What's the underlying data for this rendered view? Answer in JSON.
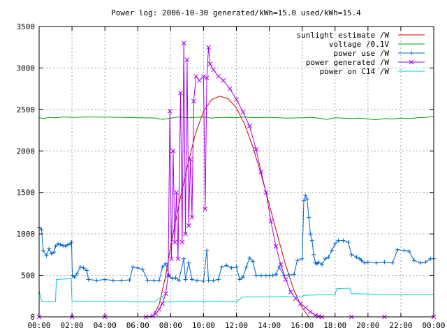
{
  "chart_data": {
    "type": "line",
    "title": "Power log: 2006-10-30 generated/kWh=15.0 used/kWh=15.4",
    "xlabel": "",
    "ylabel": "",
    "xlim": [
      0,
      24
    ],
    "ylim": [
      0,
      3500
    ],
    "grid": true,
    "legend_position": "top-right",
    "x_ticks": [
      "00:00",
      "02:00",
      "04:00",
      "06:00",
      "08:00",
      "10:00",
      "12:00",
      "14:00",
      "16:00",
      "18:00",
      "20:00",
      "22:00",
      "00:00"
    ],
    "y_ticks": [
      "0",
      "500",
      "1000",
      "1500",
      "2000",
      "2500",
      "3000",
      "3500"
    ],
    "series": [
      {
        "name": "sunlight estimate /W",
        "color": "#cc0000",
        "marker": "none",
        "points": [
          [
            6.9,
            0
          ],
          [
            7.3,
            150
          ],
          [
            7.7,
            500
          ],
          [
            8.0,
            850
          ],
          [
            8.5,
            1350
          ],
          [
            9.0,
            1800
          ],
          [
            9.5,
            2200
          ],
          [
            10.0,
            2480
          ],
          [
            10.5,
            2620
          ],
          [
            11.0,
            2660
          ],
          [
            11.5,
            2630
          ],
          [
            12.0,
            2520
          ],
          [
            12.5,
            2320
          ],
          [
            13.0,
            2050
          ],
          [
            13.5,
            1720
          ],
          [
            14.0,
            1350
          ],
          [
            14.5,
            980
          ],
          [
            15.0,
            620
          ],
          [
            15.5,
            320
          ],
          [
            16.0,
            110
          ],
          [
            16.4,
            0
          ]
        ]
      },
      {
        "name": "voltage /0.1V",
        "color": "#00a000",
        "marker": "none",
        "points": [
          [
            0,
            2400
          ],
          [
            0.3,
            2390
          ],
          [
            0.6,
            2405
          ],
          [
            1,
            2400
          ],
          [
            1.5,
            2410
          ],
          [
            2,
            2405
          ],
          [
            3,
            2410
          ],
          [
            4,
            2408
          ],
          [
            5,
            2405
          ],
          [
            6,
            2400
          ],
          [
            7,
            2398
          ],
          [
            7.5,
            2380
          ],
          [
            8,
            2395
          ],
          [
            8.5,
            2410
          ],
          [
            9,
            2400
          ],
          [
            10,
            2410
          ],
          [
            10.5,
            2395
          ],
          [
            11,
            2405
          ],
          [
            12,
            2400
          ],
          [
            12.5,
            2410
          ],
          [
            13,
            2400
          ],
          [
            14,
            2405
          ],
          [
            15,
            2395
          ],
          [
            16,
            2400
          ],
          [
            16.5,
            2405
          ],
          [
            17,
            2395
          ],
          [
            17.5,
            2380
          ],
          [
            18,
            2400
          ],
          [
            19,
            2390
          ],
          [
            19.5,
            2395
          ],
          [
            20,
            2385
          ],
          [
            20.5,
            2375
          ],
          [
            21,
            2390
          ],
          [
            21.5,
            2385
          ],
          [
            22,
            2395
          ],
          [
            22.5,
            2390
          ],
          [
            23,
            2400
          ],
          [
            23.5,
            2405
          ],
          [
            24,
            2415
          ]
        ]
      },
      {
        "name": "power use /W",
        "color": "#0066cc",
        "marker": "+",
        "points": [
          [
            0,
            1080
          ],
          [
            0.15,
            1050
          ],
          [
            0.25,
            800
          ],
          [
            0.45,
            740
          ],
          [
            0.6,
            820
          ],
          [
            0.75,
            760
          ],
          [
            0.9,
            780
          ],
          [
            1.0,
            850
          ],
          [
            1.15,
            880
          ],
          [
            1.3,
            870
          ],
          [
            1.45,
            860
          ],
          [
            1.6,
            850
          ],
          [
            1.75,
            870
          ],
          [
            1.9,
            880
          ],
          [
            1.97,
            900
          ],
          [
            2.02,
            500
          ],
          [
            2.15,
            480
          ],
          [
            2.3,
            520
          ],
          [
            2.5,
            600
          ],
          [
            2.7,
            590
          ],
          [
            2.9,
            560
          ],
          [
            3.0,
            450
          ],
          [
            3.5,
            440
          ],
          [
            4.0,
            450
          ],
          [
            4.5,
            440
          ],
          [
            5.0,
            440
          ],
          [
            5.5,
            445
          ],
          [
            5.7,
            600
          ],
          [
            6.0,
            590
          ],
          [
            6.3,
            570
          ],
          [
            6.6,
            440
          ],
          [
            7.0,
            440
          ],
          [
            7.3,
            440
          ],
          [
            7.5,
            600
          ],
          [
            7.7,
            640
          ],
          [
            7.9,
            500
          ],
          [
            8.1,
            460
          ],
          [
            8.3,
            470
          ],
          [
            8.5,
            440
          ],
          [
            8.8,
            700
          ],
          [
            8.9,
            450
          ],
          [
            9.1,
            650
          ],
          [
            9.3,
            450
          ],
          [
            9.6,
            440
          ],
          [
            10.0,
            430
          ],
          [
            10.2,
            800
          ],
          [
            10.3,
            440
          ],
          [
            10.6,
            440
          ],
          [
            10.9,
            450
          ],
          [
            11.1,
            600
          ],
          [
            11.4,
            620
          ],
          [
            11.7,
            590
          ],
          [
            12.0,
            600
          ],
          [
            12.2,
            450
          ],
          [
            12.4,
            480
          ],
          [
            12.6,
            600
          ],
          [
            12.8,
            710
          ],
          [
            13.0,
            670
          ],
          [
            13.2,
            500
          ],
          [
            13.5,
            500
          ],
          [
            13.8,
            500
          ],
          [
            14.0,
            500
          ],
          [
            14.2,
            500
          ],
          [
            14.4,
            510
          ],
          [
            14.6,
            600
          ],
          [
            14.9,
            500
          ],
          [
            15.2,
            505
          ],
          [
            15.5,
            510
          ],
          [
            15.7,
            680
          ],
          [
            16.0,
            700
          ],
          [
            16.1,
            1400
          ],
          [
            16.2,
            1460
          ],
          [
            16.3,
            1420
          ],
          [
            16.4,
            1200
          ],
          [
            16.5,
            1000
          ],
          [
            16.6,
            920
          ],
          [
            16.7,
            750
          ],
          [
            16.8,
            650
          ],
          [
            16.9,
            640
          ],
          [
            17.0,
            660
          ],
          [
            17.2,
            630
          ],
          [
            17.4,
            700
          ],
          [
            17.6,
            720
          ],
          [
            17.8,
            800
          ],
          [
            18.0,
            880
          ],
          [
            18.2,
            920
          ],
          [
            18.5,
            920
          ],
          [
            18.8,
            900
          ],
          [
            19.0,
            750
          ],
          [
            19.3,
            720
          ],
          [
            19.5,
            700
          ],
          [
            19.6,
            680
          ],
          [
            19.8,
            650
          ],
          [
            20.0,
            660
          ],
          [
            20.5,
            650
          ],
          [
            21.0,
            660
          ],
          [
            21.5,
            650
          ],
          [
            21.8,
            810
          ],
          [
            22.2,
            800
          ],
          [
            22.5,
            790
          ],
          [
            22.8,
            680
          ],
          [
            23.2,
            650
          ],
          [
            23.5,
            660
          ],
          [
            23.8,
            700
          ],
          [
            24.0,
            700
          ]
        ]
      },
      {
        "name": "power generated /W",
        "color": "#aa00ee",
        "marker": "x",
        "points": [
          [
            0,
            0
          ],
          [
            2,
            0
          ],
          [
            4,
            0
          ],
          [
            6.5,
            0
          ],
          [
            6.9,
            10
          ],
          [
            7.1,
            40
          ],
          [
            7.3,
            90
          ],
          [
            7.5,
            160
          ],
          [
            7.7,
            280
          ],
          [
            7.85,
            500
          ],
          [
            7.95,
            2480
          ],
          [
            8.05,
            700
          ],
          [
            8.15,
            2000
          ],
          [
            8.25,
            900
          ],
          [
            8.35,
            1500
          ],
          [
            8.45,
            700
          ],
          [
            8.6,
            2700
          ],
          [
            8.7,
            900
          ],
          [
            8.8,
            3300
          ],
          [
            8.9,
            1000
          ],
          [
            9.0,
            3100
          ],
          [
            9.1,
            1100
          ],
          [
            9.2,
            1900
          ],
          [
            9.3,
            1200
          ],
          [
            9.4,
            2600
          ],
          [
            9.55,
            2900
          ],
          [
            9.75,
            2850
          ],
          [
            10.0,
            2900
          ],
          [
            10.1,
            1300
          ],
          [
            10.2,
            2880
          ],
          [
            10.3,
            3250
          ],
          [
            10.4,
            3050
          ],
          [
            10.6,
            2980
          ],
          [
            10.9,
            2900
          ],
          [
            11.2,
            2850
          ],
          [
            11.6,
            2750
          ],
          [
            12.0,
            2620
          ],
          [
            12.4,
            2470
          ],
          [
            12.8,
            2300
          ],
          [
            13.2,
            2020
          ],
          [
            13.5,
            1750
          ],
          [
            13.8,
            1500
          ],
          [
            14.1,
            1150
          ],
          [
            14.4,
            850
          ],
          [
            14.7,
            630
          ],
          [
            15.0,
            450
          ],
          [
            15.3,
            300
          ],
          [
            15.6,
            220
          ],
          [
            15.9,
            160
          ],
          [
            16.2,
            110
          ],
          [
            16.5,
            60
          ],
          [
            16.8,
            20
          ],
          [
            17.0,
            5
          ],
          [
            17.2,
            0
          ],
          [
            19,
            0
          ],
          [
            21,
            0
          ],
          [
            24,
            0
          ]
        ]
      },
      {
        "name": "power on C14 /W",
        "color": "#00cccc",
        "marker": "none",
        "points": [
          [
            0,
            320
          ],
          [
            0.15,
            190
          ],
          [
            0.5,
            180
          ],
          [
            1.0,
            185
          ],
          [
            1.05,
            450
          ],
          [
            1.5,
            455
          ],
          [
            1.95,
            460
          ],
          [
            2.0,
            190
          ],
          [
            3.0,
            185
          ],
          [
            4.0,
            185
          ],
          [
            5.0,
            185
          ],
          [
            6.0,
            180
          ],
          [
            7.0,
            180
          ],
          [
            7.5,
            250
          ],
          [
            7.6,
            180
          ],
          [
            8.0,
            180
          ],
          [
            9.0,
            185
          ],
          [
            10.0,
            180
          ],
          [
            11.0,
            185
          ],
          [
            12.0,
            180
          ],
          [
            12.3,
            230
          ],
          [
            12.4,
            240
          ],
          [
            13.0,
            240
          ],
          [
            14.0,
            240
          ],
          [
            15.0,
            245
          ],
          [
            16.0,
            240
          ],
          [
            16.1,
            260
          ],
          [
            17.0,
            265
          ],
          [
            18.0,
            265
          ],
          [
            18.1,
            340
          ],
          [
            18.9,
            345
          ],
          [
            19.0,
            280
          ],
          [
            20.0,
            275
          ],
          [
            21.0,
            270
          ],
          [
            22.0,
            270
          ],
          [
            23.0,
            272
          ],
          [
            24.0,
            270
          ]
        ]
      }
    ]
  }
}
